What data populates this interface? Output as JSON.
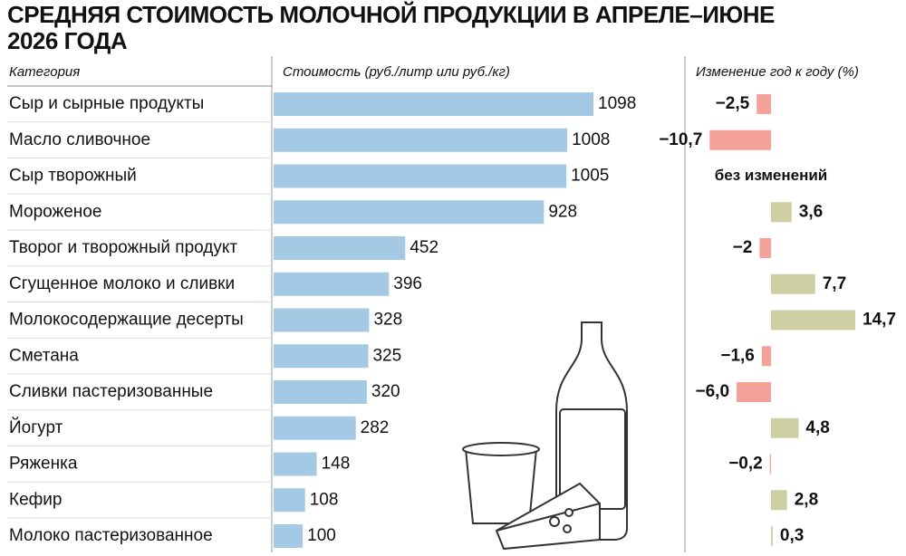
{
  "chart_data": [
    {
      "type": "bar",
      "title": "СРЕДНЯЯ СТОИМОСТЬ МОЛОЧНОЙ ПРОДУКЦИИ В АПРЕЛЕ–ИЮНЕ 2026 ГОДА",
      "category_header": "Категория",
      "value_header": "Стоимость (руб./литр или руб./кг)",
      "categories": [
        "Сыр и сырные продукты",
        "Масло сливочное",
        "Сыр творожный",
        "Мороженое",
        "Творог и творожный продукт",
        "Сгущенное молоко и сливки",
        "Молокосодержащие десерты",
        "Сметана",
        "Сливки пастеризованные",
        "Йогурт",
        "Ряженка",
        "Кефир",
        "Молоко пастеризованное"
      ],
      "values": [
        1098,
        1008,
        1005,
        928,
        452,
        396,
        328,
        325,
        320,
        282,
        148,
        108,
        100
      ],
      "color": "#a3c9e5"
    },
    {
      "type": "diverging-bar",
      "value_header": "Изменение год к году (%)",
      "values": [
        -2.5,
        -10.7,
        0,
        3.6,
        -2,
        7.7,
        14.7,
        -1.6,
        -6.0,
        4.8,
        -0.2,
        2.8,
        0.3
      ],
      "value_labels": [
        "−2,5",
        "−10,7",
        "без изменений",
        "3,6",
        "−2",
        "7,7",
        "14,7",
        "−1,6",
        "−6,0",
        "4,8",
        "−0,2",
        "2,8",
        "0,3"
      ],
      "positive_color": "#cdcfa3",
      "negative_color": "#f5a29b"
    }
  ]
}
